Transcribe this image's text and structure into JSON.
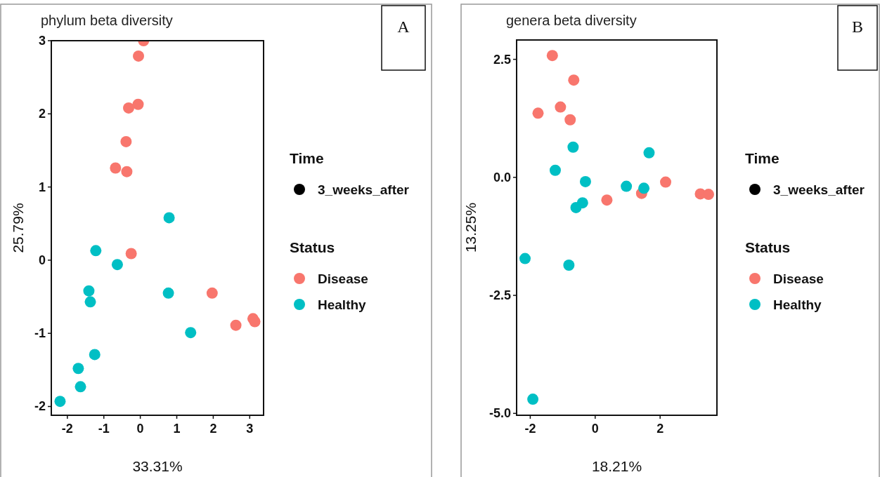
{
  "chart_data": [
    {
      "type": "scatter",
      "title": "phylum beta diversity",
      "xlabel": "33.31%",
      "ylabel": "25.79%",
      "legend_title": "Status",
      "annotations": [
        "A",
        "Time",
        "3_weeks_after"
      ],
      "legend": "right",
      "marker": "circle",
      "xlim": [
        -2.44,
        3.38
      ],
      "ylim": [
        -2.12,
        3.0
      ],
      "xticks": [
        -2,
        -1,
        0,
        1,
        2,
        3
      ],
      "yticks": [
        -2,
        -1,
        0,
        1,
        2,
        3
      ],
      "series": [
        {
          "name": "Disease",
          "color": "#f8766d",
          "x": [
            0.09,
            -0.05,
            -0.32,
            -0.06,
            -0.39,
            -0.68,
            -0.37,
            -0.25,
            1.97,
            2.62,
            3.09,
            3.14
          ],
          "values": [
            3.0,
            2.79,
            2.08,
            2.13,
            1.62,
            1.26,
            1.21,
            0.09,
            -0.45,
            -0.89,
            -0.8,
            -0.84
          ]
        },
        {
          "name": "Healthy",
          "color": "#00bfc4",
          "x": [
            0.79,
            -1.22,
            -0.63,
            -1.41,
            -1.37,
            0.77,
            1.38,
            -1.25,
            -1.7,
            -1.64,
            -2.2
          ],
          "values": [
            0.58,
            0.13,
            -0.06,
            -0.42,
            -0.57,
            -0.45,
            -0.99,
            -1.29,
            -1.48,
            -1.73,
            -1.93
          ]
        }
      ]
    },
    {
      "type": "scatter",
      "title": "genera beta diversity",
      "xlabel": "18.21%",
      "ylabel": "13.25%",
      "legend_title": "Status",
      "annotations": [
        "B",
        "Time",
        "3_weeks_after"
      ],
      "legend": "right",
      "marker": "circle",
      "xlim": [
        -2.42,
        3.75
      ],
      "ylim": [
        -5.04,
        2.91
      ],
      "xticks": [
        -2,
        0,
        2
      ],
      "yticks": [
        2.5,
        {
          "value": 0,
          "label": "0.0"
        },
        -2.5,
        {
          "value": -5,
          "label": "-5.0"
        }
      ],
      "series": [
        {
          "name": "Disease",
          "color": "#f8766d",
          "x": [
            -1.32,
            -0.66,
            -1.76,
            -1.07,
            -0.77,
            0.36,
            1.43,
            2.17,
            3.24,
            3.49
          ],
          "values": [
            2.58,
            2.06,
            1.36,
            1.49,
            1.22,
            -0.48,
            -0.34,
            -0.1,
            -0.35,
            -0.36
          ]
        },
        {
          "name": "Healthy",
          "color": "#00bfc4",
          "x": [
            -0.68,
            1.66,
            -1.23,
            -0.3,
            0.96,
            1.5,
            -0.39,
            -0.59,
            -2.16,
            -0.81,
            -1.92
          ],
          "values": [
            0.64,
            0.52,
            0.15,
            -0.09,
            -0.19,
            -0.23,
            -0.54,
            -0.64,
            -1.72,
            -1.86,
            -4.7
          ]
        }
      ]
    }
  ]
}
